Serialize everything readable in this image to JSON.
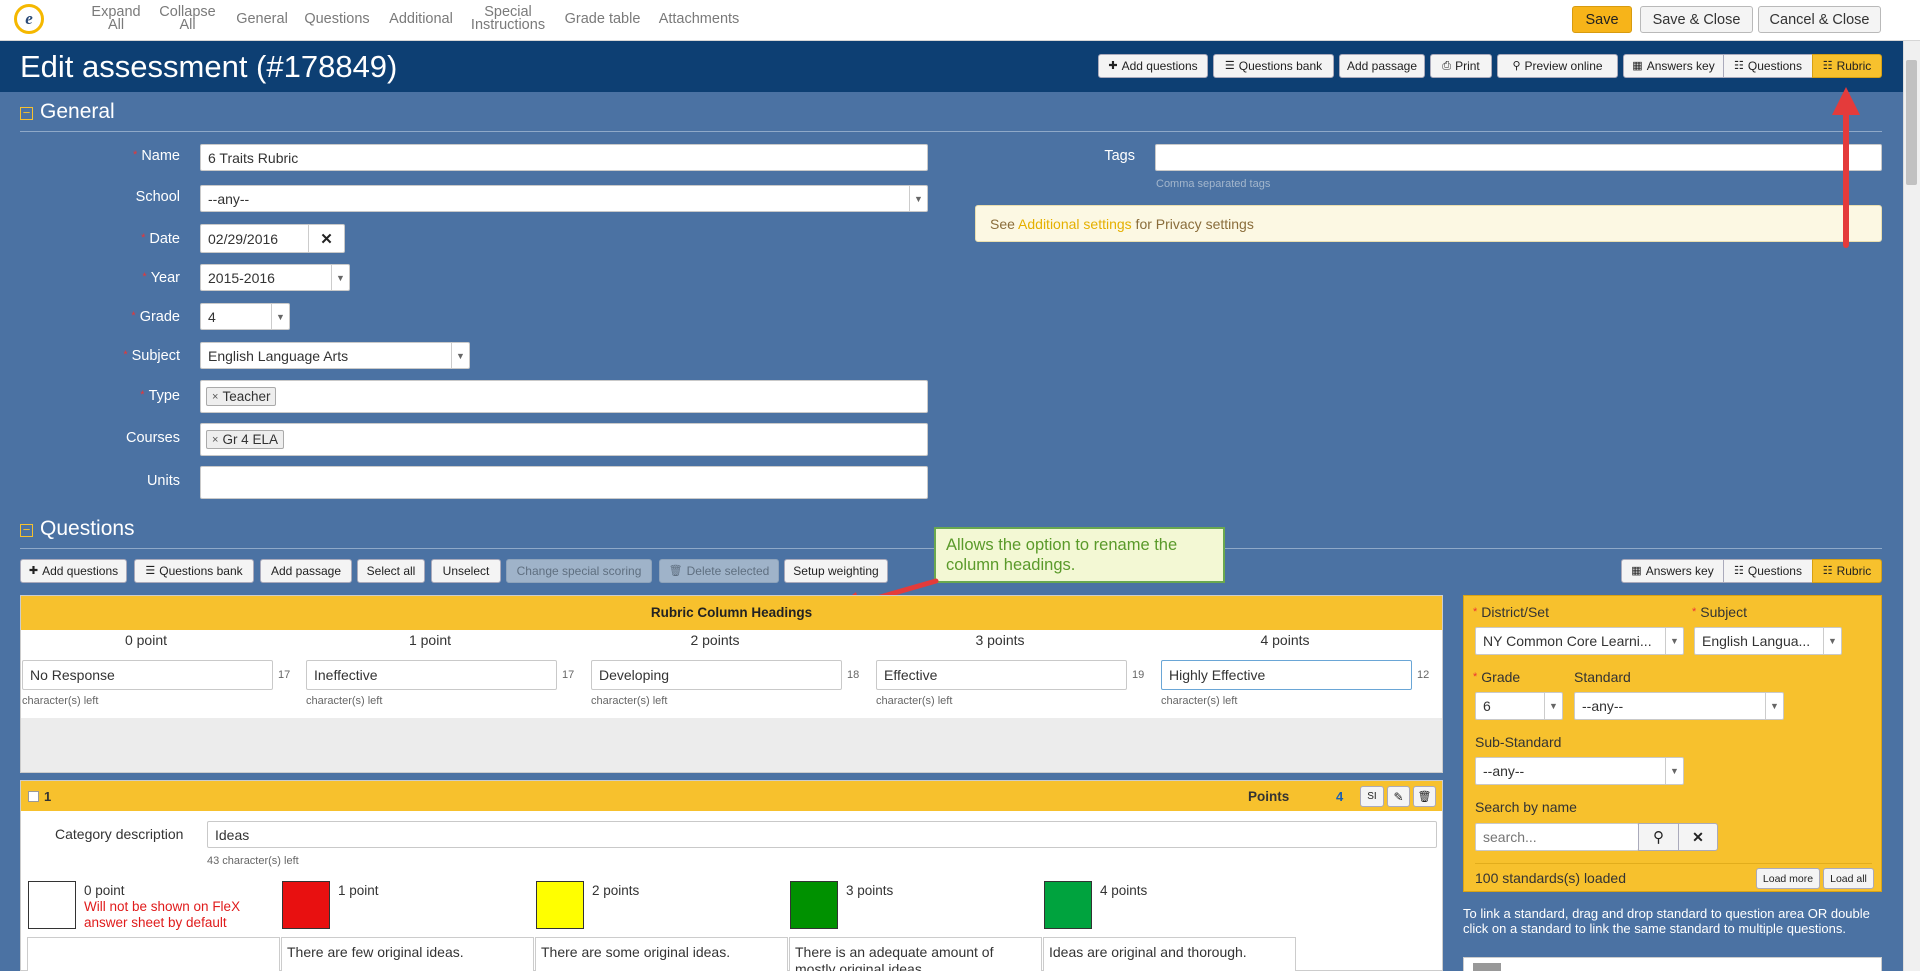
{
  "topnav": {
    "items": [
      {
        "label": "Expand",
        "label2": "All"
      },
      {
        "label": "Collapse",
        "label2": "All"
      },
      {
        "label": "General"
      },
      {
        "label": "Questions"
      },
      {
        "label": "Additional"
      },
      {
        "label": "Special",
        "label2": "Instructions"
      },
      {
        "label": "Grade table"
      },
      {
        "label": "Attachments"
      }
    ],
    "save": "Save",
    "save_close": "Save & Close",
    "cancel_close": "Cancel & Close"
  },
  "header": {
    "title": "Edit assessment (#178849)",
    "buttons": {
      "add_questions": "Add questions",
      "questions_bank": "Questions bank",
      "add_passage": "Add passage",
      "print": "Print",
      "preview": "Preview online",
      "answers_key": "Answers key",
      "questions": "Questions",
      "rubric": "Rubric"
    }
  },
  "general": {
    "heading": "General",
    "name": {
      "label": "Name",
      "value": "6 Traits Rubric"
    },
    "school": {
      "label": "School",
      "value": "--any--"
    },
    "date": {
      "label": "Date",
      "value": "02/29/2016"
    },
    "year": {
      "label": "Year",
      "value": "2015-2016"
    },
    "grade": {
      "label": "Grade",
      "value": "4"
    },
    "subject": {
      "label": "Subject",
      "value": "English Language Arts"
    },
    "type": {
      "label": "Type",
      "tag": "Teacher"
    },
    "courses": {
      "label": "Courses",
      "tag": "Gr 4 ELA"
    },
    "units": {
      "label": "Units",
      "value": ""
    },
    "tags": {
      "label": "Tags",
      "hint": "Comma separated tags"
    },
    "privacy": {
      "pre": "See ",
      "link": "Additional settings",
      "post": " for Privacy settings"
    }
  },
  "questions": {
    "heading": "Questions",
    "toolbar": {
      "add_questions": "Add questions",
      "questions_bank": "Questions bank",
      "add_passage": "Add passage",
      "select_all": "Select all",
      "unselect": "Unselect",
      "change_scoring": "Change special scoring",
      "delete_selected": "Delete selected",
      "setup_weighting": "Setup weighting",
      "answers_key": "Answers key",
      "questions": "Questions",
      "rubric": "Rubric"
    }
  },
  "callout": "Allows the option to rename the column headings.",
  "rubric_headings": {
    "title": "Rubric Column Headings",
    "chars_left_label": "character(s) left",
    "columns": [
      {
        "points": "0 point",
        "value": "No Response",
        "remaining": "17"
      },
      {
        "points": "1 point",
        "value": "Ineffective",
        "remaining": "17"
      },
      {
        "points": "2 points",
        "value": "Developing",
        "remaining": "18"
      },
      {
        "points": "3 points",
        "value": "Effective",
        "remaining": "19"
      },
      {
        "points": "4 points",
        "value": "Highly Effective",
        "remaining": "12"
      }
    ]
  },
  "question1": {
    "number": "1",
    "points_label": "Points",
    "points_value": "4",
    "si": "SI",
    "category_label": "Category description",
    "category_value": "Ideas",
    "category_remaining": "43 character(s) left",
    "levels": [
      {
        "label": "0 point",
        "note": "Will not be shown on FleX answer sheet by default",
        "color": "#ffffff",
        "desc": ""
      },
      {
        "label": "1 point",
        "color": "#e81010",
        "desc": "There are few original ideas."
      },
      {
        "label": "2 points",
        "color": "#ffff00",
        "desc": "There are some original ideas."
      },
      {
        "label": "3 points",
        "color": "#009100",
        "desc": "There is an adequate amount of mostly original ideas."
      },
      {
        "label": "4 points",
        "color": "#00a33e",
        "desc": "Ideas are original and thorough."
      }
    ]
  },
  "standards": {
    "district_label": "District/Set",
    "district_value": "NY Common Core Learni...",
    "subject_label": "Subject",
    "subject_value": "English Langua...",
    "grade_label": "Grade",
    "grade_value": "6",
    "standard_label": "Standard",
    "standard_value": "--any--",
    "substandard_label": "Sub-Standard",
    "substandard_value": "--any--",
    "search_label": "Search by name",
    "search_placeholder": "search...",
    "loaded": "100 standards(s) loaded",
    "load_more": "Load more",
    "load_all": "Load all",
    "help": "To link a standard, drag and drop standard to question area OR double click on a standard to link the same standard to multiple questions."
  }
}
